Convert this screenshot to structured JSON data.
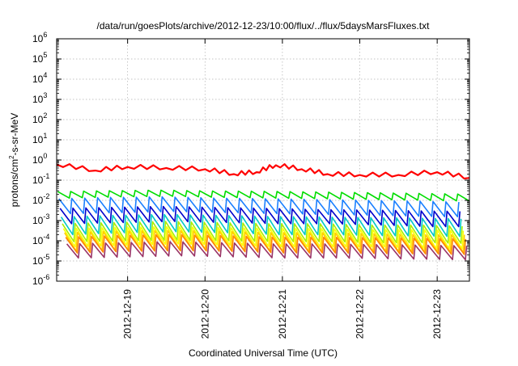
{
  "chart_data": {
    "type": "line",
    "title": "/data/run/goesPlots/archive/2012-12-23/10:00/flux/../flux/5daysMarsFluxes.txt",
    "xlabel": "Coordinated Universal Time (UTC)",
    "ylabel": {
      "base": "protons/cm",
      "sup": "2",
      "rest": "-s-sr-MeV"
    },
    "log_scale_y": true,
    "grid": true,
    "legend": "none",
    "x_range": [
      "2012-12-18T02:00",
      "2012-12-23T10:00"
    ],
    "x_ticks": [
      "2012-12-19",
      "2012-12-20",
      "2012-12-21",
      "2012-12-22",
      "2012-12-23"
    ],
    "y_range": [
      1e-06,
      1000000.0
    ],
    "y_ticks": [
      {
        "value": 1e-06,
        "base": "10",
        "exp": "-6"
      },
      {
        "value": 1e-05,
        "base": "10",
        "exp": "-5"
      },
      {
        "value": 0.0001,
        "base": "10",
        "exp": "-4"
      },
      {
        "value": 0.001,
        "base": "10",
        "exp": "-3"
      },
      {
        "value": 0.01,
        "base": "10",
        "exp": "-2"
      },
      {
        "value": 0.1,
        "base": "10",
        "exp": "-1"
      },
      {
        "value": 1.0,
        "base": "10",
        "exp": "0"
      },
      {
        "value": 10.0,
        "base": "10",
        "exp": "1"
      },
      {
        "value": 100.0,
        "base": "10",
        "exp": "2"
      },
      {
        "value": 1000.0,
        "base": "10",
        "exp": "3"
      },
      {
        "value": 10000.0,
        "base": "10",
        "exp": "4"
      },
      {
        "value": 100000.0,
        "base": "10",
        "exp": "5"
      },
      {
        "value": 1000000.0,
        "base": "10",
        "exp": "6"
      }
    ],
    "series": [
      {
        "color": "#ff0000",
        "pattern": "smooth",
        "x": [
          "2012-12-18T02:00",
          "2012-12-18T14:00",
          "2012-12-19T00:00",
          "2012-12-19T12:00",
          "2012-12-20T00:00",
          "2012-12-20T09:00",
          "2012-12-20T16:00",
          "2012-12-20T22:00",
          "2012-12-21T06:00",
          "2012-12-21T14:00",
          "2012-12-22T00:00",
          "2012-12-22T12:00",
          "2012-12-23T00:00",
          "2012-12-23T10:00"
        ],
        "values": [
          0.6,
          0.3,
          0.45,
          0.4,
          0.35,
          0.2,
          0.25,
          0.55,
          0.35,
          0.2,
          0.18,
          0.18,
          0.25,
          0.13
        ]
      },
      {
        "color": "#00dd00",
        "pattern": "sawtooth",
        "period_hours": 4,
        "low": [
          0.013,
          0.015,
          0.016,
          0.014,
          0.013,
          0.012,
          0.011,
          0.01,
          0.009
        ],
        "high": [
          0.027,
          0.03,
          0.032,
          0.029,
          0.028,
          0.026,
          0.024,
          0.022,
          0.02
        ]
      },
      {
        "color": "#1a7fff",
        "pattern": "sawtooth",
        "period_hours": 4,
        "low": [
          0.0022,
          0.0025,
          0.0028,
          0.0025,
          0.0022,
          0.002,
          0.0018,
          0.0016,
          0.0015
        ],
        "high": [
          0.012,
          0.014,
          0.015,
          0.013,
          0.012,
          0.011,
          0.01,
          0.009,
          0.008
        ]
      },
      {
        "color": "#0000cc",
        "pattern": "sawtooth",
        "period_hours": 4,
        "low": [
          0.0007,
          0.0008,
          0.0009,
          0.0008,
          0.0007,
          0.0007,
          0.0006,
          0.0005,
          0.0005
        ],
        "high": [
          0.004,
          0.0045,
          0.005,
          0.0045,
          0.004,
          0.0035,
          0.0033,
          0.003,
          0.0028
        ]
      },
      {
        "color": "#00c8c8",
        "pattern": "sawtooth",
        "period_hours": 4,
        "low": [
          0.0002,
          0.00025,
          0.00028,
          0.00025,
          0.0002,
          0.0002,
          0.00018,
          0.00017,
          0.00016
        ],
        "high": [
          0.0015,
          0.0018,
          0.002,
          0.0018,
          0.0016,
          0.0015,
          0.0014,
          0.0013,
          0.0012
        ]
      },
      {
        "color": "#aaee00",
        "pattern": "sawtooth",
        "period_hours": 4,
        "low": [
          9e-05,
          0.0001,
          0.00011,
          0.0001,
          9e-05,
          9e-05,
          8e-05,
          8e-05,
          7e-05
        ],
        "high": [
          0.0007,
          0.0008,
          0.0009,
          0.0008,
          0.0007,
          0.0007,
          0.0006,
          0.0006,
          0.0005
        ]
      },
      {
        "color": "#ffff00",
        "pattern": "sawtooth",
        "period_hours": 4,
        "low": [
          5e-05,
          6e-05,
          7e-05,
          6e-05,
          5e-05,
          5e-05,
          5e-05,
          4e-05,
          4e-05
        ],
        "high": [
          0.0004,
          0.00045,
          0.0005,
          0.00045,
          0.0004,
          0.0004,
          0.00035,
          0.00035,
          0.0003
        ]
      },
      {
        "color": "#ffcc00",
        "pattern": "sawtooth",
        "period_hours": 4,
        "low": [
          3e-05,
          3.5e-05,
          4e-05,
          3.5e-05,
          3e-05,
          3e-05,
          3e-05,
          2.8e-05,
          2.5e-05
        ],
        "high": [
          0.00025,
          0.0003,
          0.00032,
          0.0003,
          0.00025,
          0.00025,
          0.00022,
          0.0002,
          0.0002
        ]
      },
      {
        "color": "#ff8800",
        "pattern": "sawtooth",
        "period_hours": 4,
        "low": [
          2.5e-05,
          3e-05,
          3.2e-05,
          3e-05,
          2.5e-05,
          2.5e-05,
          2.3e-05,
          2.2e-05,
          2e-05
        ],
        "high": [
          0.00015,
          0.00018,
          0.0002,
          0.00018,
          0.00015,
          0.00015,
          0.00014,
          0.00013,
          0.00012
        ]
      },
      {
        "color": "#993366",
        "pattern": "sawtooth",
        "period_hours": 4,
        "low": [
          1.4e-05,
          1.6e-05,
          1.8e-05,
          1.6e-05,
          1.4e-05,
          1.4e-05,
          1.3e-05,
          1.2e-05,
          1.1e-05
        ],
        "high": [
          7e-05,
          8e-05,
          9e-05,
          8e-05,
          7e-05,
          7e-05,
          6.5e-05,
          6e-05,
          5.5e-05
        ]
      }
    ]
  }
}
